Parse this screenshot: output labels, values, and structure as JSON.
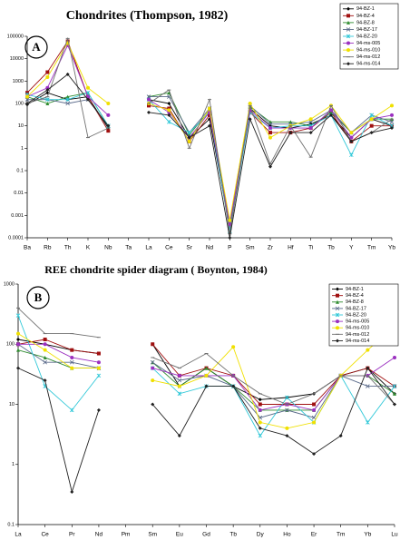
{
  "chart_data": [
    {
      "type": "line",
      "title": "Chondrites (Thompson, 1982)",
      "label": "A",
      "log_scale": true,
      "categories": [
        "Ba",
        "Rb",
        "Th",
        "K",
        "Nb",
        "Ta",
        "La",
        "Ce",
        "Sr",
        "Nd",
        "P",
        "Sm",
        "Zr",
        "Hf",
        "Ti",
        "Tb",
        "Y",
        "Tm",
        "Yb"
      ],
      "ylim": [
        0.0001,
        100000
      ],
      "yticks": [
        0.0001,
        0.001,
        0.01,
        0.1,
        1,
        10,
        100,
        1000,
        10000,
        100000
      ],
      "series": [
        {
          "name": "94-BZ-1",
          "color": "#000000",
          "values": [
            90,
            300,
            150,
            200,
            8,
            null,
            150,
            100,
            3,
            20,
            0.0003,
            60,
            10,
            8,
            12,
            30,
            3,
            20,
            10
          ]
        },
        {
          "name": "94-BZ-4",
          "color": "#a01010",
          "values": [
            300,
            2500,
            60000,
            200,
            6,
            null,
            80,
            60,
            2,
            30,
            0.0005,
            40,
            5,
            5,
            8,
            40,
            2,
            10,
            10
          ]
        },
        {
          "name": "94-BZ-8",
          "color": "#2e8b2e",
          "values": [
            200,
            100,
            200,
            300,
            10,
            null,
            200,
            300,
            4,
            50,
            0.0002,
            70,
            15,
            15,
            10,
            40,
            5,
            20,
            20
          ]
        },
        {
          "name": "94-BZ-17",
          "color": "#5a6a8a",
          "values": [
            150,
            150,
            100,
            150,
            10,
            null,
            200,
            200,
            5,
            60,
            0.0003,
            80,
            12,
            12,
            15,
            50,
            5,
            30,
            15
          ]
        },
        {
          "name": "94-BZ-20",
          "color": "#30c8d8",
          "values": [
            250,
            150,
            150,
            300,
            10,
            null,
            150,
            15,
            5,
            40,
            0.0002,
            40,
            8,
            10,
            10,
            30,
            0.5,
            30,
            10
          ]
        },
        {
          "name": "94-ms-005",
          "color": "#9b30c0",
          "values": [
            200,
            500,
            40000,
            200,
            30,
            null,
            150,
            40,
            3,
            40,
            0.0004,
            50,
            8,
            8,
            8,
            50,
            3,
            20,
            30
          ]
        },
        {
          "name": "94-ms-010",
          "color": "#f0e000",
          "values": [
            200,
            1500,
            50000,
            500,
            100,
            null,
            100,
            50,
            2,
            60,
            0.0006,
            100,
            3,
            10,
            20,
            80,
            5,
            20,
            80
          ]
        },
        {
          "name": "94-ms-012",
          "color": "#707070",
          "values": [
            100,
            200,
            80000,
            3,
            8,
            null,
            100,
            400,
            1,
            150,
            0.00015,
            80,
            0.2,
            10,
            0.4,
            80,
            2,
            5,
            20
          ]
        },
        {
          "name": "94-ms-014",
          "color": "#202020",
          "values": [
            100,
            400,
            2000,
            150,
            10,
            null,
            40,
            30,
            3,
            10,
            0.0001,
            20,
            0.15,
            5,
            5,
            30,
            2,
            5,
            8
          ]
        }
      ]
    },
    {
      "type": "line",
      "title": "REE chondrite spider diagram ( Boynton, 1984)",
      "label": "B",
      "log_scale": true,
      "categories": [
        "La",
        "Ce",
        "Pr",
        "Nd",
        "Pm",
        "Sm",
        "Eu",
        "Gd",
        "Tb",
        "Dy",
        "Ho",
        "Er",
        "Tm",
        "Yb",
        "Lu"
      ],
      "ylim": [
        0.1,
        1000
      ],
      "yticks": [
        0.1,
        1,
        10,
        100,
        1000
      ],
      "series": [
        {
          "name": "94-BZ-1",
          "color": "#000000",
          "values": [
            120,
            100,
            80,
            70,
            null,
            100,
            20,
            40,
            20,
            12,
            13,
            15,
            30,
            40,
            15
          ]
        },
        {
          "name": "94-BZ-4",
          "color": "#a01010",
          "values": [
            100,
            120,
            80,
            70,
            null,
            100,
            30,
            40,
            30,
            10,
            10,
            10,
            30,
            40,
            20
          ]
        },
        {
          "name": "94-BZ-8",
          "color": "#2e8b2e",
          "values": [
            80,
            60,
            40,
            40,
            null,
            50,
            20,
            40,
            20,
            8,
            8,
            8,
            30,
            30,
            15
          ]
        },
        {
          "name": "94-BZ-17",
          "color": "#5a6a8a",
          "values": [
            100,
            50,
            50,
            40,
            null,
            50,
            25,
            30,
            20,
            6,
            8,
            6,
            30,
            20,
            20
          ]
        },
        {
          "name": "94-BZ-20",
          "color": "#30c8d8",
          "values": [
            300,
            20,
            8,
            30,
            null,
            40,
            15,
            20,
            20,
            3,
            13,
            5,
            30,
            5,
            20
          ]
        },
        {
          "name": "94-ms-005",
          "color": "#9b30c0",
          "values": [
            100,
            100,
            60,
            50,
            null,
            40,
            30,
            30,
            30,
            8,
            10,
            8,
            30,
            30,
            60
          ]
        },
        {
          "name": "94-ms-010",
          "color": "#f0e000",
          "values": [
            150,
            80,
            40,
            40,
            null,
            25,
            20,
            30,
            90,
            5,
            4,
            5,
            30,
            80,
            200
          ]
        },
        {
          "name": "94-ms-012",
          "color": "#707070",
          "values": [
            400,
            150,
            150,
            130,
            null,
            60,
            40,
            70,
            30,
            15,
            10,
            15,
            30,
            30,
            10
          ]
        },
        {
          "name": "94-ms-014",
          "color": "#202020",
          "values": [
            40,
            25,
            0.35,
            8,
            null,
            10,
            3,
            20,
            20,
            4,
            3,
            1.5,
            3,
            40,
            10
          ]
        }
      ]
    }
  ]
}
